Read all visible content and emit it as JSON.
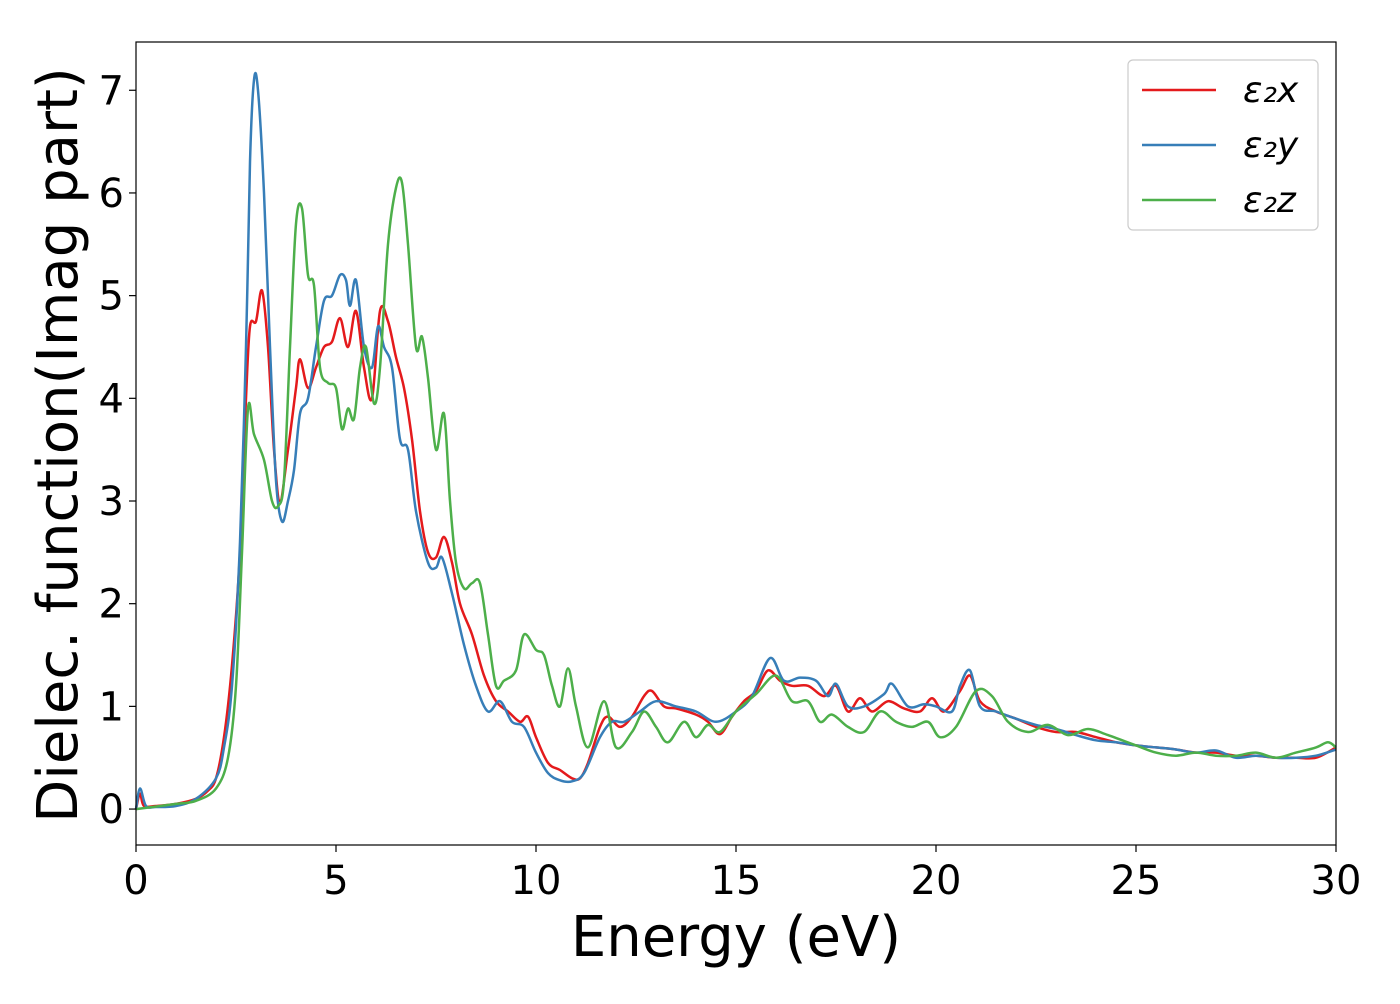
{
  "chart_data": {
    "type": "line",
    "title": "",
    "xlabel": "Energy (eV)",
    "ylabel": "Dielec. function(Imag part)",
    "xlim": [
      0,
      30
    ],
    "ylim": [
      -0.35,
      7.47
    ],
    "xticks": [
      0,
      5,
      10,
      15,
      20,
      25,
      30
    ],
    "xtick_labels": [
      "0",
      "5",
      "10",
      "15",
      "20",
      "25",
      "30"
    ],
    "yticks": [
      0,
      1,
      2,
      3,
      4,
      5,
      6,
      7
    ],
    "ytick_labels": [
      "0",
      "1",
      "2",
      "3",
      "4",
      "5",
      "6",
      "7"
    ],
    "grid": false,
    "legend_position": "top-right",
    "series": [
      {
        "name": "ε₂x",
        "color": "#e41a1c",
        "x": [
          0,
          0.1,
          0.2,
          0.5,
          1,
          1.5,
          1.8,
          2,
          2.2,
          2.4,
          2.6,
          2.75,
          2.85,
          3.0,
          3.15,
          3.3,
          3.45,
          3.6,
          3.8,
          4.0,
          4.1,
          4.3,
          4.5,
          4.7,
          4.9,
          5.1,
          5.3,
          5.5,
          5.7,
          5.9,
          6.1,
          6.3,
          6.5,
          6.7,
          6.9,
          7.1,
          7.3,
          7.5,
          7.7,
          7.9,
          8.1,
          8.4,
          8.7,
          9.0,
          9.3,
          9.6,
          9.8,
          10,
          10.3,
          10.6,
          10.9,
          11.1,
          11.3,
          11.6,
          11.8,
          12.1,
          12.4,
          12.7,
          12.9,
          13.2,
          13.5,
          14,
          14.3,
          14.6,
          14.9,
          15.2,
          15.5,
          15.8,
          16.1,
          16.4,
          16.8,
          17.2,
          17.5,
          17.8,
          18.1,
          18.4,
          18.8,
          19.2,
          19.6,
          19.9,
          20.2,
          20.6,
          20.85,
          21.1,
          21.5,
          22,
          22.5,
          23,
          23.5,
          24,
          24.5,
          25,
          25.5,
          26,
          26.5,
          27,
          27.5,
          28,
          28.5,
          29,
          29.5,
          30
        ],
        "y": [
          0,
          0.15,
          0.03,
          0.03,
          0.05,
          0.1,
          0.18,
          0.3,
          0.7,
          1.4,
          2.5,
          4.0,
          4.7,
          4.75,
          5.05,
          4.5,
          3.5,
          3.0,
          3.5,
          4.1,
          4.38,
          4.1,
          4.3,
          4.5,
          4.55,
          4.78,
          4.5,
          4.85,
          4.3,
          4.0,
          4.85,
          4.75,
          4.4,
          4.1,
          3.6,
          2.9,
          2.5,
          2.45,
          2.65,
          2.4,
          2.0,
          1.7,
          1.3,
          1.05,
          0.95,
          0.85,
          0.9,
          0.7,
          0.45,
          0.38,
          0.3,
          0.3,
          0.45,
          0.8,
          0.9,
          0.8,
          0.9,
          1.1,
          1.15,
          1.0,
          0.98,
          0.92,
          0.85,
          0.73,
          0.9,
          1.05,
          1.15,
          1.35,
          1.25,
          1.2,
          1.2,
          1.1,
          1.2,
          0.95,
          1.08,
          0.95,
          1.05,
          0.98,
          0.95,
          1.08,
          0.95,
          1.15,
          1.3,
          1.05,
          0.95,
          0.88,
          0.8,
          0.75,
          0.75,
          0.7,
          0.65,
          0.62,
          0.6,
          0.58,
          0.55,
          0.55,
          0.52,
          0.52,
          0.5,
          0.5,
          0.5,
          0.6
        ]
      },
      {
        "name": "ε₂y",
        "color": "#377eb8",
        "x": [
          0,
          0.1,
          0.25,
          0.5,
          1,
          1.5,
          2,
          2.2,
          2.4,
          2.6,
          2.75,
          2.85,
          2.95,
          3.05,
          3.2,
          3.35,
          3.5,
          3.65,
          3.8,
          3.95,
          4.1,
          4.3,
          4.5,
          4.7,
          4.9,
          5.1,
          5.25,
          5.35,
          5.5,
          5.7,
          5.9,
          6.05,
          6.2,
          6.4,
          6.6,
          6.8,
          7.0,
          7.3,
          7.5,
          7.65,
          7.9,
          8.2,
          8.5,
          8.8,
          9.1,
          9.4,
          9.7,
          10,
          10.3,
          10.6,
          10.9,
          11.2,
          11.6,
          11.9,
          12.2,
          12.6,
          13,
          13.5,
          14,
          14.5,
          15,
          15.4,
          15.85,
          16.2,
          16.6,
          17,
          17.3,
          17.5,
          17.8,
          18.2,
          18.7,
          18.9,
          19.3,
          19.7,
          20,
          20.4,
          20.6,
          20.85,
          21.1,
          21.5,
          22,
          22.5,
          23,
          23.5,
          24,
          24.5,
          25,
          25.5,
          26,
          26.5,
          27,
          27.5,
          28,
          28.5,
          29,
          29.5,
          30
        ],
        "y": [
          0,
          0.2,
          0.03,
          0.02,
          0.03,
          0.1,
          0.3,
          0.6,
          1.2,
          2.6,
          4.5,
          6.3,
          7.1,
          7.0,
          6.0,
          4.5,
          3.2,
          2.8,
          3.0,
          3.3,
          3.85,
          4.0,
          4.5,
          4.95,
          5.0,
          5.2,
          5.15,
          4.9,
          5.15,
          4.5,
          4.3,
          4.7,
          4.5,
          4.3,
          3.6,
          3.5,
          2.9,
          2.4,
          2.35,
          2.45,
          2.1,
          1.6,
          1.2,
          0.95,
          1.05,
          0.85,
          0.8,
          0.55,
          0.35,
          0.28,
          0.27,
          0.35,
          0.7,
          0.85,
          0.85,
          0.95,
          1.05,
          1.0,
          0.95,
          0.85,
          0.95,
          1.1,
          1.47,
          1.25,
          1.28,
          1.25,
          1.1,
          1.22,
          1.0,
          1.0,
          1.12,
          1.22,
          1.0,
          1.02,
          1.0,
          0.95,
          1.2,
          1.35,
          1.0,
          0.95,
          0.88,
          0.82,
          0.78,
          0.72,
          0.67,
          0.65,
          0.62,
          0.6,
          0.58,
          0.55,
          0.57,
          0.5,
          0.52,
          0.5,
          0.5,
          0.52,
          0.58
        ]
      },
      {
        "name": "ε₂z",
        "color": "#4daf4a",
        "x": [
          0,
          1,
          1.5,
          2,
          2.3,
          2.5,
          2.65,
          2.8,
          2.95,
          3.2,
          3.4,
          3.55,
          3.7,
          3.85,
          4.0,
          4.15,
          4.3,
          4.45,
          4.6,
          4.8,
          5.0,
          5.15,
          5.3,
          5.45,
          5.6,
          5.75,
          5.95,
          6.1,
          6.3,
          6.5,
          6.65,
          6.8,
          7.0,
          7.15,
          7.3,
          7.5,
          7.7,
          7.85,
          8.0,
          8.2,
          8.4,
          8.6,
          8.8,
          9.0,
          9.2,
          9.5,
          9.7,
          10.0,
          10.2,
          10.4,
          10.6,
          10.8,
          11.0,
          11.3,
          11.7,
          12.0,
          12.4,
          12.7,
          13.0,
          13.3,
          13.7,
          14.0,
          14.3,
          14.6,
          15,
          15.5,
          16,
          16.4,
          16.8,
          17.1,
          17.4,
          17.8,
          18.2,
          18.6,
          19,
          19.4,
          19.8,
          20.1,
          20.5,
          21,
          21.4,
          21.8,
          22.3,
          22.8,
          23.3,
          23.8,
          24.3,
          25,
          25.5,
          26,
          26.5,
          27,
          27.5,
          28,
          28.5,
          29,
          29.5,
          29.8,
          30
        ],
        "y": [
          0,
          0.05,
          0.08,
          0.2,
          0.5,
          1.2,
          2.5,
          3.9,
          3.65,
          3.4,
          3.0,
          2.95,
          3.2,
          4.5,
          5.7,
          5.85,
          5.2,
          5.1,
          4.3,
          4.15,
          4.1,
          3.7,
          3.9,
          3.8,
          4.3,
          4.5,
          3.95,
          4.3,
          5.5,
          6.05,
          6.1,
          5.5,
          4.5,
          4.6,
          4.2,
          3.5,
          3.85,
          3.0,
          2.4,
          2.15,
          2.2,
          2.2,
          1.7,
          1.2,
          1.25,
          1.35,
          1.7,
          1.55,
          1.5,
          1.2,
          1.0,
          1.37,
          1.0,
          0.6,
          1.05,
          0.6,
          0.75,
          0.95,
          0.8,
          0.65,
          0.85,
          0.7,
          0.82,
          0.75,
          0.95,
          1.12,
          1.3,
          1.05,
          1.05,
          0.85,
          0.92,
          0.8,
          0.75,
          0.95,
          0.85,
          0.8,
          0.85,
          0.7,
          0.8,
          1.15,
          1.1,
          0.85,
          0.75,
          0.82,
          0.72,
          0.78,
          0.72,
          0.62,
          0.55,
          0.52,
          0.55,
          0.52,
          0.52,
          0.55,
          0.5,
          0.55,
          0.6,
          0.65,
          0.6
        ]
      }
    ]
  }
}
